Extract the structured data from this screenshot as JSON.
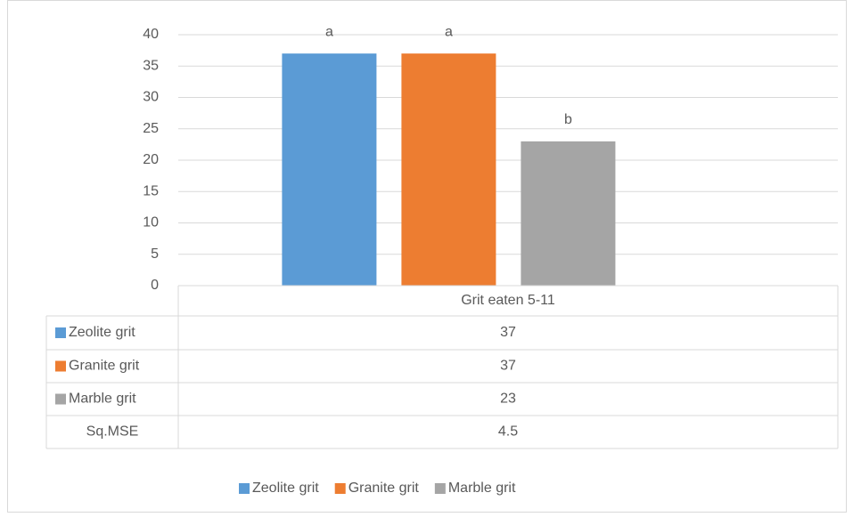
{
  "chart_data": {
    "type": "bar",
    "categories": [
      "Grit eaten 5-11"
    ],
    "series": [
      {
        "name": "Zeolite grit",
        "color": "#5b9bd5",
        "values": [
          37
        ],
        "letters": [
          "a"
        ]
      },
      {
        "name": "Granite grit",
        "color": "#ed7d31",
        "values": [
          37
        ],
        "letters": [
          "a"
        ]
      },
      {
        "name": "Marble grit",
        "color": "#a5a5a5",
        "values": [
          23
        ],
        "letters": [
          "b"
        ]
      }
    ],
    "extra_rows": [
      {
        "name": "Sq.MSE",
        "values": [
          4.5
        ]
      }
    ],
    "ylim": [
      0,
      40
    ],
    "yticks": [
      0,
      5,
      10,
      15,
      20,
      25,
      30,
      35,
      40
    ],
    "grid": true
  }
}
